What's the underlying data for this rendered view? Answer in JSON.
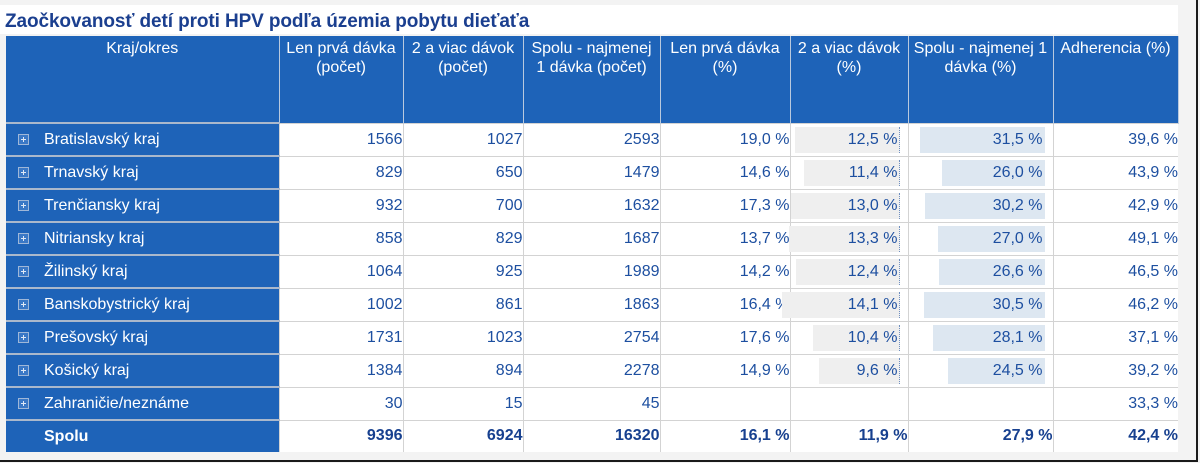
{
  "title": "Zaočkovanosť detí proti HPV podľa územia pobytu dieťaťa",
  "colors": {
    "header_bg": "#1e63b8",
    "text_blue": "#1d4fa0",
    "bar_gray": "#efefef",
    "bar_blue": "#dde7f1"
  },
  "columns": [
    {
      "label": "Kraj/okres"
    },
    {
      "label": "Len prvá dávka (počet)"
    },
    {
      "label": "2 a viac dávok (počet)"
    },
    {
      "label": "Spolu - najmenej 1 dávka (počet)"
    },
    {
      "label": "Len prvá dávka (%)"
    },
    {
      "label": "2 a viac dávok (%)"
    },
    {
      "label": "Spolu - najmenej 1 dávka (%)"
    },
    {
      "label": "Adherencia (%)"
    }
  ],
  "rows": [
    {
      "region": "Bratislavský kraj",
      "expand_icon": "plus-square-icon",
      "first_dose": "1566",
      "two_plus": "1027",
      "total_count": "2593",
      "first_pct": "19,0 %",
      "two_plus_pct": "12,5 %",
      "total_pct": "31,5 %",
      "adherence": "39,6 %"
    },
    {
      "region": "Trnavský kraj",
      "expand_icon": "plus-square-icon",
      "first_dose": "829",
      "two_plus": "650",
      "total_count": "1479",
      "first_pct": "14,6 %",
      "two_plus_pct": "11,4 %",
      "total_pct": "26,0 %",
      "adherence": "43,9 %"
    },
    {
      "region": "Trenčiansky kraj",
      "expand_icon": "plus-square-icon",
      "first_dose": "932",
      "two_plus": "700",
      "total_count": "1632",
      "first_pct": "17,3 %",
      "two_plus_pct": "13,0 %",
      "total_pct": "30,2 %",
      "adherence": "42,9 %"
    },
    {
      "region": "Nitriansky kraj",
      "expand_icon": "plus-square-icon",
      "first_dose": "858",
      "two_plus": "829",
      "total_count": "1687",
      "first_pct": "13,7 %",
      "two_plus_pct": "13,3 %",
      "total_pct": "27,0 %",
      "adherence": "49,1 %"
    },
    {
      "region": "Žilinský kraj",
      "expand_icon": "plus-square-icon",
      "first_dose": "1064",
      "two_plus": "925",
      "total_count": "1989",
      "first_pct": "14,2 %",
      "two_plus_pct": "12,4 %",
      "total_pct": "26,6 %",
      "adherence": "46,5 %"
    },
    {
      "region": "Banskobystrický kraj",
      "expand_icon": "plus-square-icon",
      "first_dose": "1002",
      "two_plus": "861",
      "total_count": "1863",
      "first_pct": "16,4 %",
      "two_plus_pct": "14,1 %",
      "total_pct": "30,5 %",
      "adherence": "46,2 %"
    },
    {
      "region": "Prešovský kraj",
      "expand_icon": "plus-square-icon",
      "first_dose": "1731",
      "two_plus": "1023",
      "total_count": "2754",
      "first_pct": "17,6 %",
      "two_plus_pct": "10,4 %",
      "total_pct": "28,1 %",
      "adherence": "37,1 %"
    },
    {
      "region": "Košický kraj",
      "expand_icon": "plus-square-icon",
      "first_dose": "1384",
      "two_plus": "894",
      "total_count": "2278",
      "first_pct": "14,9 %",
      "two_plus_pct": "9,6 %",
      "total_pct": "24,5 %",
      "adherence": "39,2 %"
    },
    {
      "region": "Zahraničie/neznáme",
      "expand_icon": "plus-square-icon",
      "first_dose": "30",
      "two_plus": "15",
      "total_count": "45",
      "first_pct": "",
      "two_plus_pct": "",
      "total_pct": "",
      "adherence": "33,3 %"
    }
  ],
  "total": {
    "region": "Spolu",
    "first_dose": "9396",
    "two_plus": "6924",
    "total_count": "16320",
    "first_pct": "16,1 %",
    "two_plus_pct": "11,9 %",
    "total_pct": "27,9 %",
    "adherence": "42,4 %"
  },
  "chart_data": {
    "type": "table",
    "title": "Zaočkovanosť detí proti HPV podľa územia pobytu dieťaťa",
    "columns": [
      "Kraj/okres",
      "Len prvá dávka (počet)",
      "2 a viac dávok (počet)",
      "Spolu - najmenej 1 dávka (počet)",
      "Len prvá dávka (%)",
      "2 a viac dávok (%)",
      "Spolu - najmenej 1 dávka (%)",
      "Adherencia (%)"
    ],
    "rows": [
      [
        "Bratislavský kraj",
        1566,
        1027,
        2593,
        19.0,
        12.5,
        31.5,
        39.6
      ],
      [
        "Trnavský kraj",
        829,
        650,
        1479,
        14.6,
        11.4,
        26.0,
        43.9
      ],
      [
        "Trenčiansky kraj",
        932,
        700,
        1632,
        17.3,
        13.0,
        30.2,
        42.9
      ],
      [
        "Nitriansky kraj",
        858,
        829,
        1687,
        13.7,
        13.3,
        27.0,
        49.1
      ],
      [
        "Žilinský kraj",
        1064,
        925,
        1989,
        14.2,
        12.4,
        26.6,
        46.5
      ],
      [
        "Banskobystrický kraj",
        1002,
        861,
        1863,
        16.4,
        14.1,
        30.5,
        46.2
      ],
      [
        "Prešovský kraj",
        1731,
        1023,
        2754,
        17.6,
        10.4,
        28.1,
        37.1
      ],
      [
        "Košický kraj",
        1384,
        894,
        2278,
        14.9,
        9.6,
        24.5,
        39.2
      ],
      [
        "Zahraničie/neznáme",
        30,
        15,
        45,
        null,
        null,
        null,
        33.3
      ],
      [
        "Spolu",
        9396,
        6924,
        16320,
        16.1,
        11.9,
        27.9,
        42.4
      ]
    ],
    "bar_columns": {
      "2 a viac dávok (%)": {
        "color": "#efefef",
        "values": [
          12.5,
          11.4,
          13.0,
          13.3,
          12.4,
          14.1,
          10.4,
          9.6
        ]
      },
      "Spolu - najmenej 1 dávka (%)": {
        "color": "#dde7f1",
        "values": [
          31.5,
          26.0,
          30.2,
          27.0,
          26.6,
          30.5,
          28.1,
          24.5
        ]
      }
    }
  }
}
